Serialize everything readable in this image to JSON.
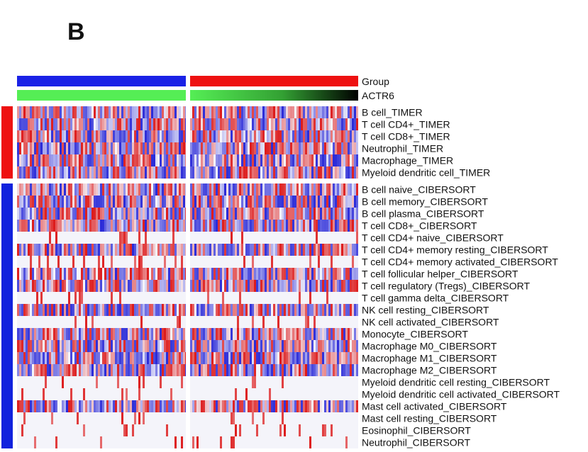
{
  "panel_label": "B",
  "chart_data": {
    "type": "heatmap",
    "annotation_tracks": [
      {
        "label": "Group",
        "kind": "categorical",
        "segments": [
          "blue",
          "red"
        ]
      },
      {
        "label": "ACTR6",
        "kind": "continuous",
        "gradient": [
          "#55ee55",
          "#000000"
        ]
      }
    ],
    "row_groups": [
      {
        "name": "TIMER",
        "color": "#ee1111",
        "rows": [
          "B cell_TIMER",
          "T cell CD4+_TIMER",
          "T cell CD8+_TIMER",
          "Neutrophil_TIMER",
          "Macrophage_TIMER",
          "Myeloid dendritic cell_TIMER"
        ]
      },
      {
        "name": "CIBERSORT",
        "color": "#1122dd",
        "rows": [
          "B cell naive_CIBERSORT",
          "B cell memory_CIBERSORT",
          "B cell plasma_CIBERSORT",
          "T cell CD8+_CIBERSORT",
          "T cell CD4+ naive_CIBERSORT",
          "T cell CD4+ memory resting_CIBERSORT",
          "T cell CD4+ memory activated_CIBERSORT",
          "T cell follicular helper_CIBERSORT",
          "T cell regulatory (Tregs)_CIBERSORT",
          "T cell gamma delta_CIBERSORT",
          "NK cell resting_CIBERSORT",
          "NK cell activated_CIBERSORT",
          "Monocyte_CIBERSORT",
          "Macrophage M0_CIBERSORT",
          "Macrophage M1_CIBERSORT",
          "Macrophage M2_CIBERSORT",
          "Myeloid dendritic cell resting_CIBERSORT",
          "Myeloid dendritic cell activated_CIBERSORT",
          "Mast cell activated_CIBERSORT",
          "Mast cell resting_CIBERSORT",
          "Eosinophil_CIBERSORT",
          "Neutrophil_CIBERSORT"
        ]
      }
    ],
    "colors": {
      "group_left": "#1a22e6",
      "group_right": "#ee1111",
      "cell_high": "#dd1a1a",
      "cell_low": "#2a2ad8",
      "cell_mid": "#f4f4fa"
    },
    "grid": false,
    "legend": "none"
  }
}
